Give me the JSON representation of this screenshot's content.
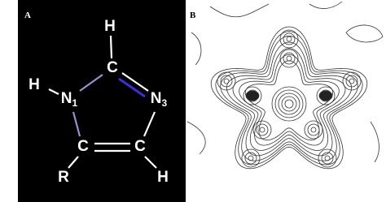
{
  "panels": [
    {
      "label": "A"
    },
    {
      "label": "B"
    }
  ],
  "nodes": [
    {
      "label": "H"
    },
    {
      "label": "C"
    },
    {
      "label": "H"
    },
    {
      "label": "N",
      "subscript": "1"
    },
    {
      "label": "N",
      "subscript": "3"
    },
    {
      "label": "C"
    },
    {
      "label": "C"
    },
    {
      "label": "R"
    },
    {
      "label": "H"
    }
  ]
}
